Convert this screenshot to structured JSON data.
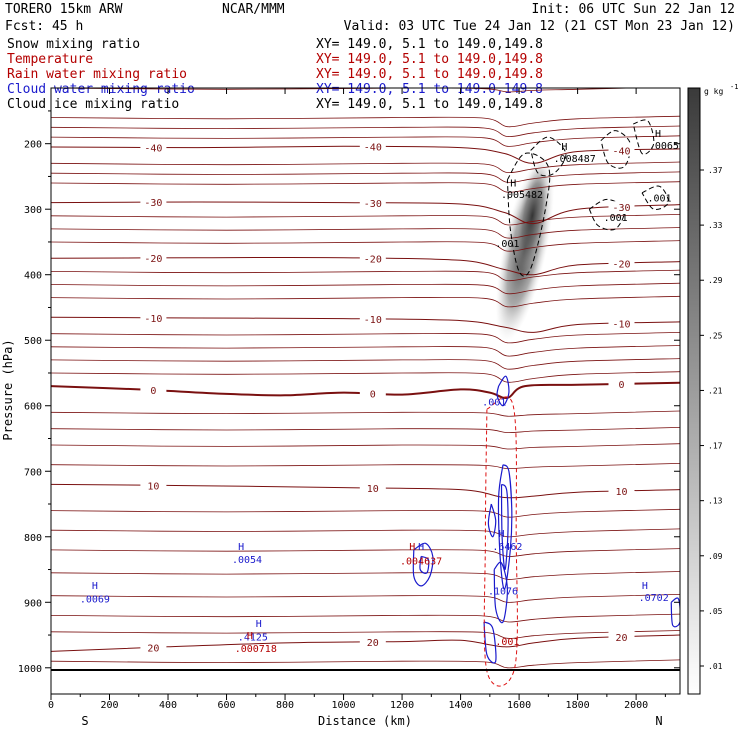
{
  "header": {
    "model": "TORERO  15km ARW",
    "org": "NCAR/MMM",
    "init": "Init: 06 UTC Sun 22 Jan 12",
    "fcst": "Fcst:   45 h",
    "valid": "Valid: 03 UTC Tue 24 Jan 12 (21 CST Mon 23 Jan 12)"
  },
  "legend": [
    {
      "name": "Snow mixing ratio",
      "xy": "XY= 149.0,  5.1 to 149.0,149.8",
      "color": "#000000"
    },
    {
      "name": "Temperature",
      "xy": "XY= 149.0,  5.1 to 149.0,149.8",
      "color": "#b40000"
    },
    {
      "name": "Rain water mixing ratio",
      "xy": "XY= 149.0,  5.1 to 149.0,149.8",
      "color": "#b40000"
    },
    {
      "name": "Cloud water mixing ratio",
      "xy": "XY= 149.0,  5.1 to 149.0,149.8",
      "color": "#1a1acc"
    },
    {
      "name": "Cloud ice mixing ratio",
      "xy": "XY= 149.0,  5.1 to 149.0,149.8",
      "color": "#000000"
    }
  ],
  "chart_data": {
    "type": "cross-section",
    "xlabel": "Distance (km)",
    "ylabel": "Pressure (hPa)",
    "xlim": [
      0,
      2150
    ],
    "ylim": [
      1040,
      115
    ],
    "x_ticks": [
      0,
      200,
      400,
      600,
      800,
      1000,
      1200,
      1400,
      1600,
      1800,
      2000
    ],
    "y_ticks": [
      200,
      300,
      400,
      500,
      600,
      700,
      800,
      900,
      1000
    ],
    "end_labels": {
      "left": "S",
      "right": "N"
    },
    "colorbar": {
      "unit": "g kg",
      "unit_exponent": "-1",
      "levels": [
        0.01,
        0.05,
        0.09,
        0.13,
        0.17,
        0.21,
        0.25,
        0.29,
        0.33,
        0.37
      ],
      "tick_labels": [
        ".01",
        ".05",
        ".09",
        ".13",
        ".17",
        ".21",
        ".25",
        ".29",
        ".33",
        ".37"
      ]
    },
    "temperature_contours": [
      {
        "value": -40,
        "label": "-40",
        "points": [
          [
            0,
            205
          ],
          [
            500,
            206
          ],
          [
            1000,
            204
          ],
          [
            1400,
            206
          ],
          [
            1550,
            215
          ],
          [
            1650,
            230
          ],
          [
            1800,
            212
          ],
          [
            2150,
            208
          ]
        ]
      },
      {
        "value": -30,
        "label": "-30",
        "points": [
          [
            0,
            290
          ],
          [
            500,
            289
          ],
          [
            1000,
            290
          ],
          [
            1400,
            292
          ],
          [
            1550,
            305
          ],
          [
            1650,
            322
          ],
          [
            1800,
            300
          ],
          [
            2150,
            293
          ]
        ]
      },
      {
        "value": -20,
        "label": "-20",
        "points": [
          [
            0,
            375
          ],
          [
            500,
            374
          ],
          [
            1000,
            374
          ],
          [
            1400,
            378
          ],
          [
            1550,
            392
          ],
          [
            1650,
            400
          ],
          [
            1800,
            385
          ],
          [
            2150,
            380
          ]
        ]
      },
      {
        "value": -10,
        "label": "-10",
        "points": [
          [
            0,
            465
          ],
          [
            500,
            466
          ],
          [
            1000,
            467
          ],
          [
            1400,
            470
          ],
          [
            1550,
            480
          ],
          [
            1650,
            488
          ],
          [
            1800,
            476
          ],
          [
            2150,
            472
          ]
        ]
      },
      {
        "value": 0,
        "label": "0",
        "points": [
          [
            0,
            570
          ],
          [
            300,
            575
          ],
          [
            600,
            582
          ],
          [
            800,
            584
          ],
          [
            1000,
            580
          ],
          [
            1200,
            583
          ],
          [
            1400,
            575
          ],
          [
            1500,
            580
          ],
          [
            1560,
            588
          ],
          [
            1620,
            570
          ],
          [
            1800,
            568
          ],
          [
            2150,
            565
          ]
        ]
      },
      {
        "value": 10,
        "label": "10",
        "points": [
          [
            0,
            720
          ],
          [
            500,
            722
          ],
          [
            1000,
            725
          ],
          [
            1400,
            728
          ],
          [
            1550,
            740
          ],
          [
            1650,
            738
          ],
          [
            1800,
            732
          ],
          [
            2150,
            728
          ]
        ]
      },
      {
        "value": 20,
        "label": "20",
        "points": [
          [
            0,
            975
          ],
          [
            400,
            968
          ],
          [
            800,
            962
          ],
          [
            1200,
            960
          ],
          [
            1400,
            958
          ],
          [
            1550,
            968
          ],
          [
            1650,
            962
          ],
          [
            1800,
            955
          ],
          [
            2150,
            950
          ]
        ]
      }
    ],
    "annotations": [
      {
        "text": "H",
        "x": 150,
        "y": 880,
        "color": "#1a1acc"
      },
      {
        "text": ".0069",
        "x": 150,
        "y": 900,
        "color": "#1a1acc"
      },
      {
        "text": "H",
        "x": 650,
        "y": 820,
        "color": "#1a1acc"
      },
      {
        "text": ".0054",
        "x": 670,
        "y": 840,
        "color": "#1a1acc"
      },
      {
        "text": "H",
        "x": 710,
        "y": 938,
        "color": "#1a1acc"
      },
      {
        "text": ".4125",
        "x": 690,
        "y": 958,
        "color": "#1a1acc"
      },
      {
        "text": "H",
        "x": 680,
        "y": 956,
        "color": "#b40000"
      },
      {
        "text": ".000718",
        "x": 700,
        "y": 976,
        "color": "#b40000"
      },
      {
        "text": "H",
        "x": 1235,
        "y": 820,
        "color": "#b40000"
      },
      {
        "text": "H",
        "x": 1265,
        "y": 820,
        "color": "#1a1acc"
      },
      {
        "text": ".004637",
        "x": 1265,
        "y": 842,
        "color": "#b40000"
      },
      {
        "text": "H",
        "x": 1540,
        "y": 800,
        "color": "#1a1acc"
      },
      {
        "text": ".6462",
        "x": 1560,
        "y": 820,
        "color": "#1a1acc"
      },
      {
        "text": ".1076",
        "x": 1545,
        "y": 888,
        "color": "#1a1acc"
      },
      {
        "text": ".001",
        "x": 1560,
        "y": 965,
        "color": "#b40000"
      },
      {
        "text": ".001",
        "x": 1515,
        "y": 600,
        "color": "#1a1acc"
      },
      {
        "text": "H",
        "x": 2030,
        "y": 880,
        "color": "#1a1acc"
      },
      {
        "text": ".0702",
        "x": 2060,
        "y": 898,
        "color": "#1a1acc"
      },
      {
        "text": "H",
        "x": 1580,
        "y": 265,
        "color": "#000000"
      },
      {
        "text": ".005482",
        "x": 1610,
        "y": 283,
        "color": "#000000"
      },
      {
        "text": "H",
        "x": 1755,
        "y": 210,
        "color": "#000000"
      },
      {
        "text": ".008487",
        "x": 1790,
        "y": 228,
        "color": "#000000"
      },
      {
        "text": "H",
        "x": 2075,
        "y": 190,
        "color": "#000000"
      },
      {
        "text": ".0065",
        "x": 2095,
        "y": 208,
        "color": "#000000"
      },
      {
        "text": ".001",
        "x": 1560,
        "y": 358,
        "color": "#000000"
      },
      {
        "text": ".001",
        "x": 2080,
        "y": 288,
        "color": "#000000"
      },
      {
        "text": ".001",
        "x": 1930,
        "y": 318,
        "color": "#000000"
      }
    ]
  }
}
